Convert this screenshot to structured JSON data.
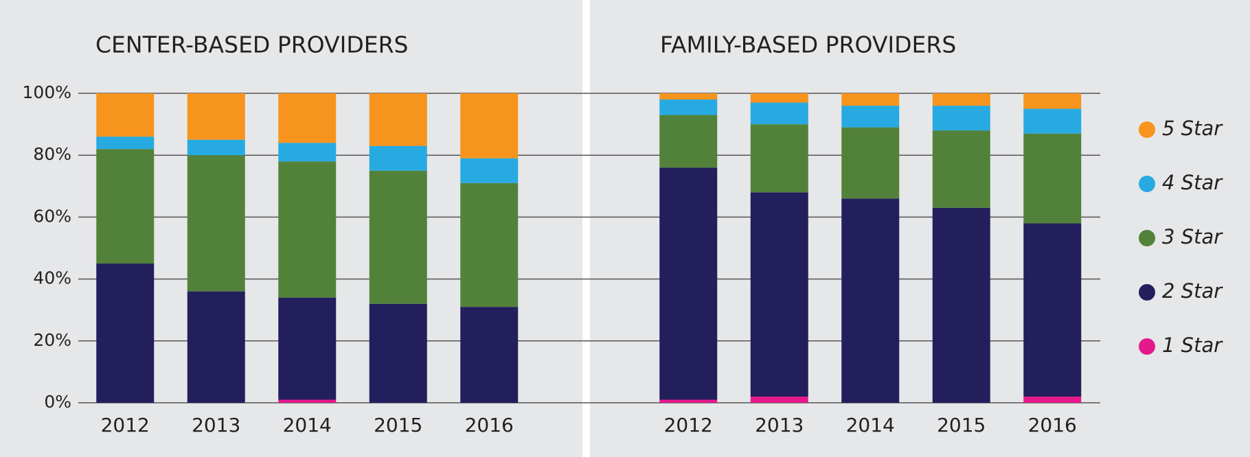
{
  "chart_data": [
    {
      "type": "stacked_bar",
      "title": "CENTER-BASED PROVIDERS",
      "categories": [
        "2012",
        "2013",
        "2014",
        "2015",
        "2016"
      ],
      "ylim": [
        0,
        100
      ],
      "yticks": [
        {
          "value": 0,
          "label": "0%"
        },
        {
          "value": 20,
          "label": "20%"
        },
        {
          "value": 40,
          "label": "40%"
        },
        {
          "value": 60,
          "label": "60%"
        },
        {
          "value": 80,
          "label": "80%"
        },
        {
          "value": 100,
          "label": "100%"
        }
      ],
      "grid": true,
      "series": [
        {
          "color": "#e6198b",
          "values": [
            0,
            0,
            1,
            0,
            0
          ]
        },
        {
          "color": "#231f5c",
          "values": [
            45,
            36,
            33,
            32,
            31
          ]
        },
        {
          "color": "#52823a",
          "values": [
            37,
            44,
            44,
            43,
            40
          ]
        },
        {
          "color": "#27aae1",
          "values": [
            4,
            5,
            6,
            8,
            8
          ]
        },
        {
          "color": "#f7941d",
          "values": [
            14,
            15,
            16,
            17,
            21
          ]
        }
      ]
    },
    {
      "type": "stacked_bar",
      "title": "FAMILY-BASED PROVIDERS",
      "categories": [
        "2012",
        "2013",
        "2014",
        "2015",
        "2016"
      ],
      "legend": "right",
      "series": [
        {
          "name": "1 Star",
          "color": "#e6198b",
          "values": [
            1,
            2,
            0,
            0,
            2
          ]
        },
        {
          "name": "2 Star",
          "color": "#231f5c",
          "values": [
            75,
            66,
            66,
            63,
            56
          ]
        },
        {
          "name": "3 Star",
          "color": "#52823a",
          "values": [
            17,
            22,
            23,
            25,
            29
          ]
        },
        {
          "name": "4 Star",
          "color": "#27aae1",
          "values": [
            5,
            7,
            7,
            8,
            8
          ]
        },
        {
          "name": "5 Star",
          "color": "#f7941d",
          "values": [
            2,
            3,
            4,
            4,
            5
          ]
        }
      ]
    }
  ]
}
